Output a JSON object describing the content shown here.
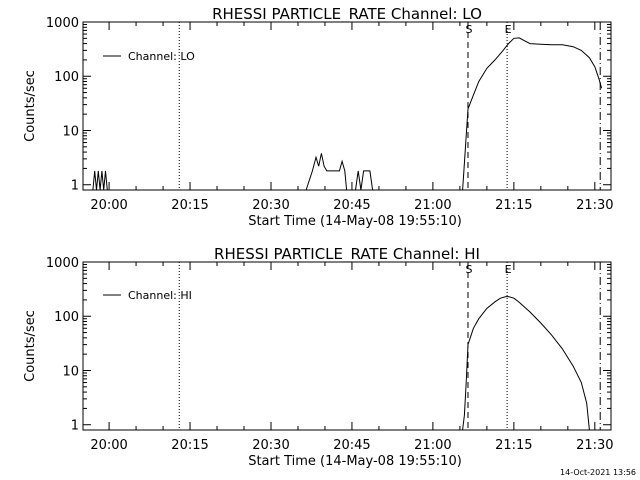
{
  "timestamp": "14-Oct-2021 13:56",
  "chart_data": [
    {
      "type": "line",
      "title": "RHESSI PARTICLE_RATE Channel: LO",
      "xlabel": "Start Time (14-May-08 19:55:10)",
      "ylabel": "Counts/sec",
      "yscale": "log",
      "xlim": [
        "19:55:10",
        "21:33:00"
      ],
      "ylim": [
        0.8,
        1000
      ],
      "xticks": [
        "20:00",
        "20:15",
        "20:30",
        "20:45",
        "21:00",
        "21:15",
        "21:30"
      ],
      "yticks": [
        "1",
        "10",
        "100",
        "1000"
      ],
      "legend": "top-left",
      "markers": [
        {
          "label": "",
          "time": "20:13:00",
          "style": "dotted"
        },
        {
          "label": "S",
          "time": "21:06:30",
          "style": "dashed"
        },
        {
          "label": "E",
          "time": "21:13:45",
          "style": "dotted"
        },
        {
          "label": "",
          "time": "21:31:00",
          "style": "dashdot"
        }
      ],
      "series": [
        {
          "name": "Channel: LO",
          "x": [
            "19:57:00",
            "19:57:20",
            "19:57:40",
            "19:58:00",
            "19:58:20",
            "19:58:40",
            "19:59:00",
            "19:59:20",
            "19:59:40",
            "20:36:30",
            "20:37:40",
            "20:38:20",
            "20:38:50",
            "20:39:20",
            "20:39:50",
            "20:40:20",
            "20:41:00",
            "20:42:00",
            "20:42:40",
            "20:43:10",
            "20:43:40",
            "20:44:00",
            "20:45:40",
            "20:46:10",
            "20:46:40",
            "20:47:10",
            "20:47:50",
            "20:48:20",
            "20:48:50",
            "21:05:30",
            "21:05:50",
            "21:06:10",
            "21:06:30",
            "21:07:30",
            "21:08:30",
            "21:10:00",
            "21:11:30",
            "21:13:00",
            "21:14:00",
            "21:15:00",
            "21:16:00",
            "21:17:00",
            "21:18:00",
            "21:20:00",
            "21:22:00",
            "21:24:00",
            "21:26:00",
            "21:27:30",
            "21:29:00",
            "21:30:00",
            "21:30:45",
            "21:31:15"
          ],
          "y": [
            0.8,
            1.8,
            0.8,
            1.8,
            0.8,
            1.8,
            0.8,
            1.8,
            0.8,
            0.8,
            1.8,
            3.2,
            2.2,
            3.8,
            2.2,
            1.8,
            1.8,
            1.8,
            1.8,
            2.7,
            1.8,
            0.8,
            0.8,
            1.8,
            0.8,
            1.8,
            1.8,
            1.8,
            0.8,
            0.8,
            2.5,
            8,
            25,
            45,
            80,
            140,
            200,
            300,
            400,
            500,
            510,
            450,
            400,
            390,
            380,
            380,
            350,
            300,
            220,
            150,
            90,
            60
          ]
        }
      ]
    },
    {
      "type": "line",
      "title": "RHESSI PARTICLE_RATE Channel: HI",
      "xlabel": "Start Time (14-May-08 19:55:10)",
      "ylabel": "Counts/sec",
      "yscale": "log",
      "xlim": [
        "19:55:10",
        "21:33:00"
      ],
      "ylim": [
        0.8,
        1000
      ],
      "xticks": [
        "20:00",
        "20:15",
        "20:30",
        "20:45",
        "21:00",
        "21:15",
        "21:30"
      ],
      "yticks": [
        "1",
        "10",
        "100",
        "1000"
      ],
      "legend": "top-left",
      "markers": [
        {
          "label": "",
          "time": "20:13:00",
          "style": "dotted"
        },
        {
          "label": "S",
          "time": "21:06:30",
          "style": "dashed"
        },
        {
          "label": "E",
          "time": "21:13:45",
          "style": "dotted"
        },
        {
          "label": "",
          "time": "21:31:00",
          "style": "dashdot"
        }
      ],
      "series": [
        {
          "name": "Channel: HI",
          "x": [
            "21:05:30",
            "21:05:50",
            "21:06:10",
            "21:06:30",
            "21:07:30",
            "21:08:30",
            "21:10:00",
            "21:11:30",
            "21:12:30",
            "21:13:30",
            "21:14:00",
            "21:15:00",
            "21:16:00",
            "21:18:00",
            "21:20:00",
            "21:22:00",
            "21:24:00",
            "21:26:00",
            "21:27:30",
            "21:28:30",
            "21:29:00"
          ],
          "y": [
            0.8,
            1.5,
            6,
            30,
            60,
            90,
            140,
            185,
            215,
            230,
            230,
            215,
            180,
            120,
            75,
            45,
            25,
            12,
            6,
            2.5,
            0.8
          ]
        }
      ]
    }
  ]
}
